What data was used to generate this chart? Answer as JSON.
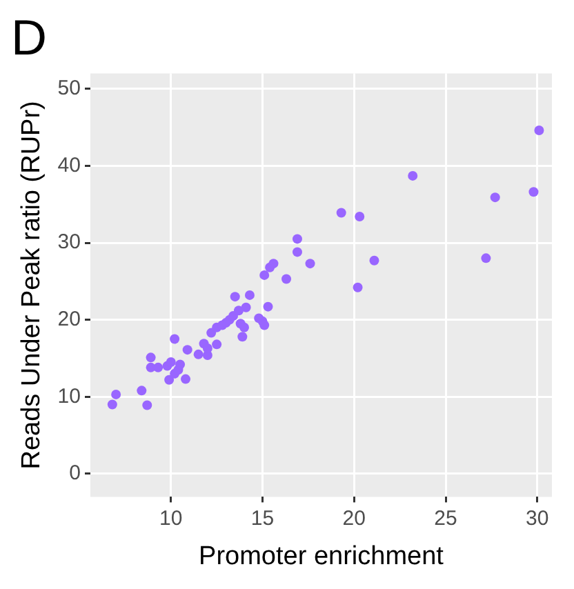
{
  "chart_data": {
    "type": "scatter",
    "title": "D",
    "xlabel": "Promoter enrichment",
    "ylabel": "Reads Under Peak ratio (RUPr)",
    "xlim": [
      5.6,
      30.8
    ],
    "ylim": [
      -3,
      52
    ],
    "xticks": [
      10,
      15,
      20,
      25,
      30
    ],
    "yticks": [
      0,
      10,
      20,
      30,
      40,
      50
    ],
    "grid": true,
    "legend": false,
    "marker": "circle",
    "series": [
      {
        "color": "#9966ff",
        "x": [
          6.8,
          7,
          8.4,
          8.7,
          8.9,
          8.9,
          9.3,
          9.8,
          9.9,
          10,
          10.2,
          10.2,
          10.4,
          10.5,
          10.8,
          10.9,
          11.5,
          11.8,
          12,
          12,
          12.2,
          12.5,
          12.5,
          12.8,
          13,
          13.2,
          13.4,
          13.5,
          13.7,
          13.8,
          13.9,
          14,
          14.1,
          14.3,
          14.8,
          15,
          15.1,
          15.3,
          15.1,
          15.4,
          15.6,
          16.3,
          16.9,
          16.9,
          17.6,
          19.3,
          20.2,
          20.3,
          21.1,
          23.2,
          27.2,
          27.7,
          29.8,
          30.1
        ],
        "values": [
          9,
          10.3,
          10.8,
          8.9,
          13.8,
          15.1,
          13.8,
          14,
          12.2,
          14.5,
          13,
          17.5,
          13.5,
          14.2,
          12.3,
          16.1,
          15.5,
          16.9,
          15.4,
          16.3,
          18.3,
          16.8,
          19,
          19.3,
          19.6,
          20,
          20.5,
          23,
          21.2,
          19.5,
          17.8,
          19,
          21.6,
          23.2,
          20.2,
          19.8,
          19.3,
          21.7,
          25.8,
          26.8,
          27.3,
          25.3,
          28.8,
          30.5,
          27.3,
          33.9,
          24.2,
          33.4,
          27.7,
          38.7,
          28,
          35.9,
          36.6,
          44.6
        ]
      }
    ]
  }
}
